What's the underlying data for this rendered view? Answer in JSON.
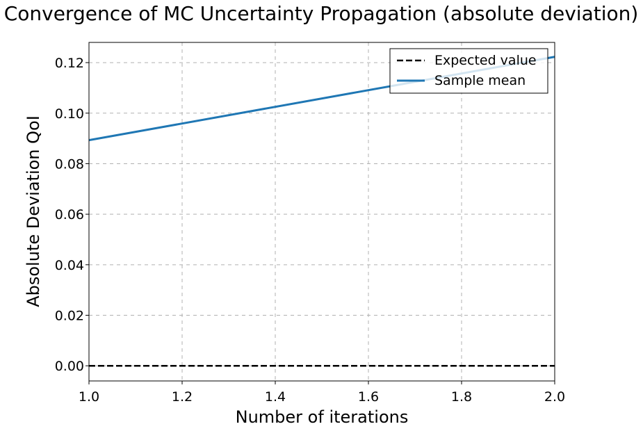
{
  "chart_data": {
    "type": "line",
    "title": "Convergence of MC Uncertainty Propagation (absolute deviation)",
    "xlabel": "Number of iterations",
    "ylabel": "Absolute Deviation QoI",
    "xlim": [
      1.0,
      2.0
    ],
    "ylim": [
      -0.006,
      0.128
    ],
    "x_ticks": [
      "1.0",
      "1.2",
      "1.4",
      "1.6",
      "1.8",
      "2.0"
    ],
    "x_tick_values": [
      1.0,
      1.2,
      1.4,
      1.6,
      1.8,
      2.0
    ],
    "y_ticks": [
      "0.00",
      "0.02",
      "0.04",
      "0.06",
      "0.08",
      "0.10",
      "0.12"
    ],
    "y_tick_values": [
      0.0,
      0.02,
      0.04,
      0.06,
      0.08,
      0.1,
      0.12
    ],
    "grid": true,
    "legend_position": "top-right",
    "series": [
      {
        "name": "Expected value",
        "style": "dashed",
        "color": "#000000",
        "x": [
          1.0,
          2.0
        ],
        "values": [
          0.0,
          0.0
        ]
      },
      {
        "name": "Sample mean",
        "style": "solid",
        "color": "#1f77b4",
        "x": [
          1.0,
          2.0
        ],
        "values": [
          0.0893,
          0.1223
        ]
      }
    ]
  }
}
